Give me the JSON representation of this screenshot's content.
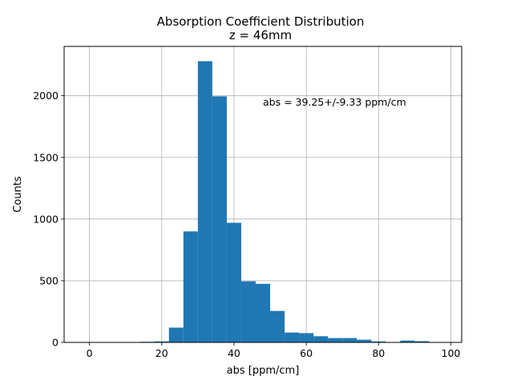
{
  "colors": {
    "bar": "#1f77b4",
    "grid": "#b0b0b0",
    "annotation": "#0000ff"
  },
  "chart_data": {
    "type": "bar",
    "title": "Absorption Coefficient Distribution",
    "subtitle": "z = 46mm",
    "xlabel": "abs [ppm/cm]",
    "ylabel": "Counts",
    "xlim": [
      -7,
      103
    ],
    "ylim": [
      0,
      2400
    ],
    "xticks": [
      0,
      20,
      40,
      60,
      80,
      100
    ],
    "yticks": [
      0,
      500,
      1000,
      1500,
      2000
    ],
    "grid": true,
    "annotation": "abs = 39.25+/-9.33 ppm/cm",
    "bin_edges": [
      14,
      18,
      22,
      26,
      30,
      34,
      38,
      42,
      46,
      50,
      54,
      58,
      62,
      66,
      70,
      74,
      78,
      82,
      86,
      90,
      94
    ],
    "values": [
      5,
      8,
      120,
      900,
      2280,
      1995,
      970,
      495,
      475,
      255,
      80,
      75,
      50,
      35,
      35,
      22,
      8,
      0,
      15,
      10
    ]
  }
}
